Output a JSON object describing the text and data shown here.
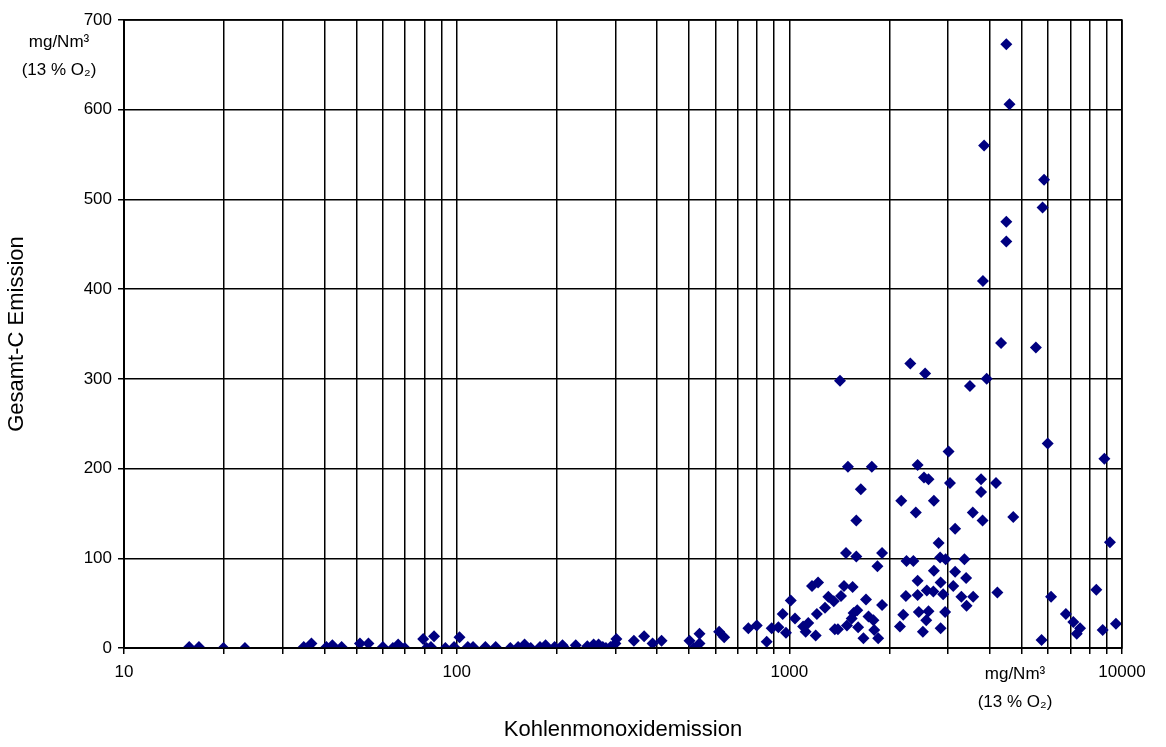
{
  "chart_data": {
    "type": "scatter",
    "xlabel": "Kohlenmonoxidemission",
    "ylabel": "Gesamt-C Emission",
    "annotations": [
      "mg/Nm³\n(13 % O₂)",
      "mg/Nm³\n(13 % O₂)"
    ],
    "log": "x",
    "xlim": [
      10,
      10000
    ],
    "xticks": [
      10,
      {
        "value": 20,
        "label": null
      },
      {
        "value": 30,
        "label": null
      },
      {
        "value": 40,
        "label": null
      },
      {
        "value": 50,
        "label": null
      },
      {
        "value": 60,
        "label": null
      },
      {
        "value": 70,
        "label": null
      },
      {
        "value": 80,
        "label": null
      },
      {
        "value": 90,
        "label": null
      },
      100,
      {
        "value": 200,
        "label": null
      },
      {
        "value": 300,
        "label": null
      },
      {
        "value": 400,
        "label": null
      },
      {
        "value": 500,
        "label": null
      },
      {
        "value": 600,
        "label": null
      },
      {
        "value": 700,
        "label": null
      },
      {
        "value": 800,
        "label": null
      },
      {
        "value": 900,
        "label": null
      },
      1000,
      {
        "value": 2000,
        "label": null
      },
      {
        "value": 3000,
        "label": null
      },
      {
        "value": 4000,
        "label": null
      },
      {
        "value": 5000,
        "label": null
      },
      {
        "value": 6000,
        "label": null
      },
      {
        "value": 7000,
        "label": null
      },
      {
        "value": 8000,
        "label": null
      },
      {
        "value": 9000,
        "label": null
      },
      10000
    ],
    "ylim": [
      0,
      700
    ],
    "yticks": [
      0,
      100,
      200,
      300,
      400,
      500,
      600,
      700
    ],
    "grid": true,
    "legend": false,
    "marker": "diamond",
    "series": [
      {
        "color": "#000080",
        "x": [
          15.7,
          16.8,
          19.9,
          23.1,
          34.7,
          36.6,
          40.6,
          42.3,
          45.1,
          51.2,
          54.3,
          60,
          64.3,
          66.7,
          69.8,
          79.3,
          81.2,
          83.7,
          85.5,
          92.5,
          98.2,
          102,
          108,
          112,
          122,
          131,
          145,
          153,
          160,
          167,
          178,
          185,
          197,
          208,
          211,
          228,
          247,
          258,
          267,
          275,
          281,
          290,
          300,
          302,
          341,
          366,
          388,
          413,
          501,
          516,
          537,
          537,
          615,
          637,
          1420,
          3490,
          3920,
          5980,
          3010,
          8850,
          1500,
          1770,
          2430,
          2540,
          2620,
          3040,
          3770,
          4180,
          1640,
          3770,
          2170,
          2720,
          2400,
          3560,
          3810,
          1590,
          4710,
          3150,
          9200,
          2810,
          1480,
          1590,
          1900,
          1840,
          2250,
          2360,
          2840,
          2950,
          3360,
          2720,
          3150,
          3400,
          2430,
          2850,
          3110,
          4220,
          8370,
          6120,
          1170,
          1220,
          1460,
          1550,
          1310,
          1360,
          1430,
          1010,
          955,
          1210,
          1280,
          1700,
          1900,
          2240,
          2430,
          2590,
          2710,
          2900,
          3290,
          3570,
          3410,
          2200,
          2450,
          2620,
          2580,
          2940,
          6780,
          7140,
          7480,
          7310,
          8750,
          9590,
          5730,
          1040,
          1100,
          1140,
          1120,
          977,
          855,
          753,
          798,
          885,
          927,
          1200,
          1370,
          1400,
          1490,
          1560,
          1600,
          1540,
          1610,
          1670,
          1730,
          1790,
          1800,
          1850,
          2150,
          2520,
          2850,
          4490,
          4590,
          3850,
          5830,
          5770,
          4490,
          4490,
          3820,
          4330,
          5510,
          2310,
          2560
        ],
        "values": [
          1,
          1,
          0,
          0,
          1,
          5,
          1,
          3,
          1,
          5,
          5,
          1,
          0,
          4,
          0,
          10,
          0,
          1,
          13,
          0,
          1,
          12,
          1,
          1,
          1,
          1,
          0,
          1,
          4,
          0,
          1,
          3,
          1,
          3,
          0,
          3,
          2,
          4,
          4,
          1,
          0,
          1,
          5,
          10,
          8,
          13,
          5,
          8,
          8,
          0,
          16,
          5,
          18,
          12,
          298,
          292,
          300,
          228,
          219,
          211,
          202,
          202,
          204,
          190,
          188,
          184,
          188,
          184,
          177,
          174,
          164,
          164,
          151,
          151,
          142,
          142,
          146,
          133,
          118,
          117,
          106,
          102,
          106,
          91,
          97,
          97,
          101,
          99,
          99,
          86,
          85,
          78,
          75,
          73,
          69,
          62,
          65,
          57,
          69,
          73,
          69,
          68,
          57,
          52,
          58,
          53,
          38,
          38,
          45,
          54,
          48,
          58,
          59,
          64,
          63,
          60,
          57,
          57,
          47,
          37,
          40,
          41,
          31,
          40,
          38,
          29,
          22,
          16,
          20,
          27,
          9,
          33,
          24,
          28,
          18,
          17,
          7,
          22,
          25,
          22,
          23,
          14,
          21,
          21,
          25,
          39,
          42,
          33,
          23,
          11,
          35,
          31,
          20,
          11,
          24,
          18,
          22,
          673,
          606,
          560,
          522,
          491,
          475,
          453,
          409,
          340,
          335,
          317,
          306
        ]
      }
    ]
  }
}
